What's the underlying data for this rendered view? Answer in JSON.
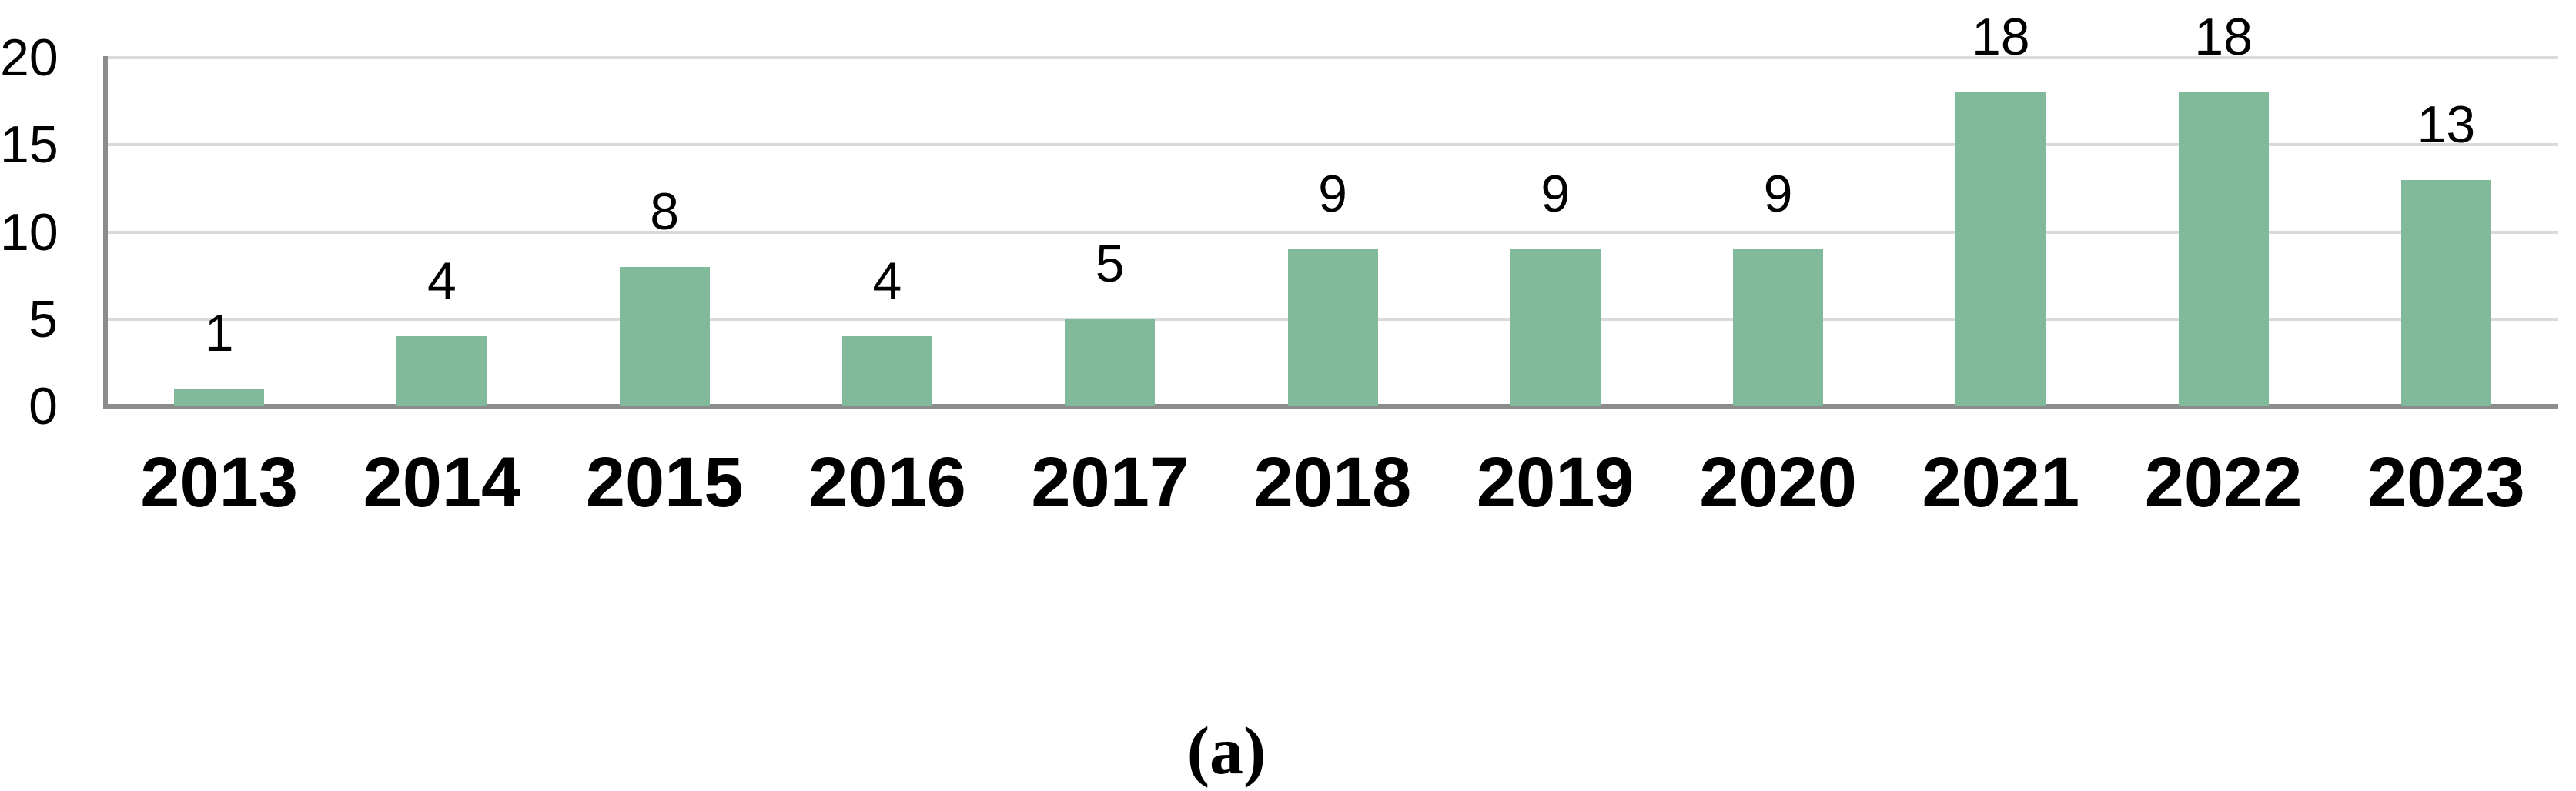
{
  "figure": {
    "caption": "(a)"
  },
  "chart_data": {
    "type": "bar",
    "title": "",
    "xlabel": "",
    "ylabel": "",
    "categories": [
      "2013",
      "2014",
      "2015",
      "2016",
      "2017",
      "2018",
      "2019",
      "2020",
      "2021",
      "2022",
      "2023"
    ],
    "values": [
      1,
      4,
      8,
      4,
      5,
      9,
      9,
      9,
      18,
      18,
      13
    ],
    "data_labels": [
      "1",
      "4",
      "8",
      "4",
      "5",
      "9",
      "9",
      "9",
      "18",
      "18",
      "13"
    ],
    "ylim": [
      0,
      20
    ],
    "yticks": [
      0,
      5,
      10,
      15,
      20
    ],
    "grid": true,
    "legend_position": "none",
    "colors": {
      "bar_fill": "#81ba9b",
      "gridline": "#dadada",
      "axis_line": "#8c8c8c",
      "text": "#000000",
      "background": "#ffffff"
    }
  }
}
